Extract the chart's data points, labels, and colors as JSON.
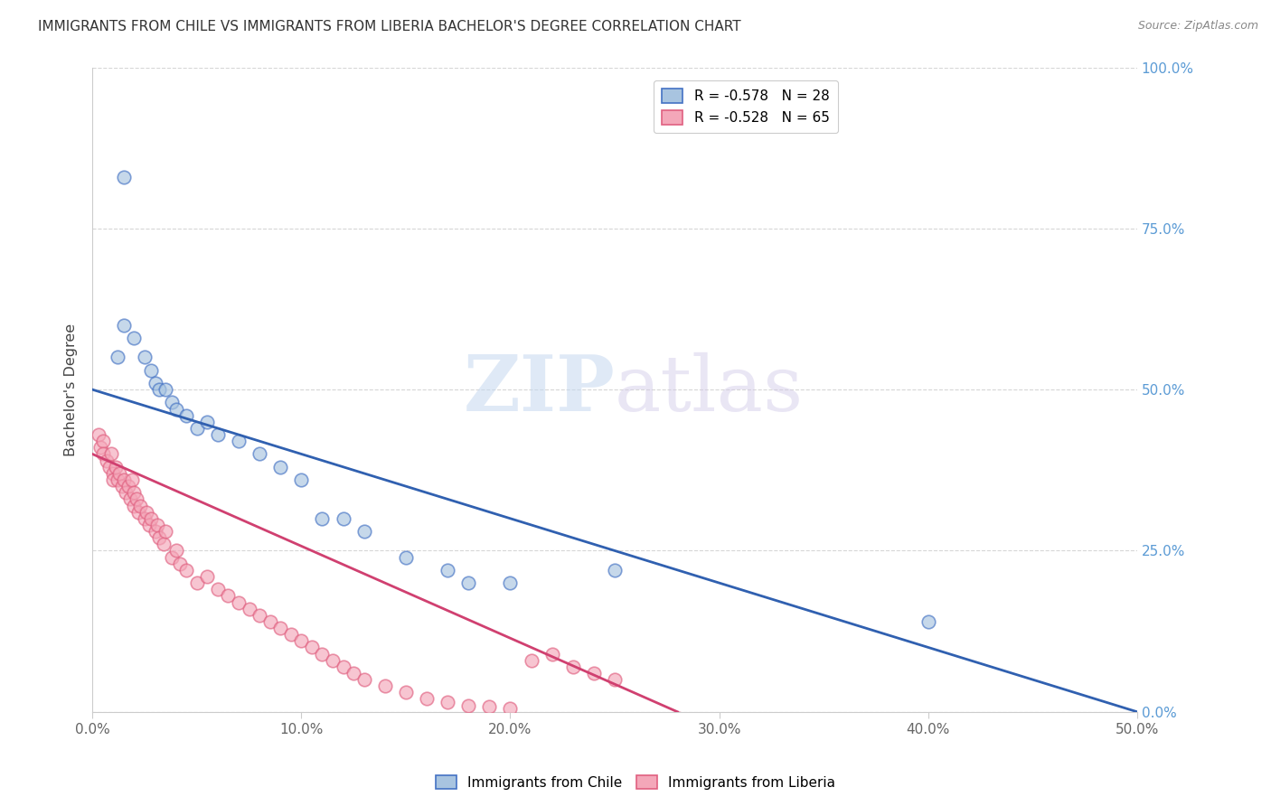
{
  "title": "IMMIGRANTS FROM CHILE VS IMMIGRANTS FROM LIBERIA BACHELOR'S DEGREE CORRELATION CHART",
  "source": "Source: ZipAtlas.com",
  "xlabel_vals": [
    0.0,
    10.0,
    20.0,
    30.0,
    40.0,
    50.0
  ],
  "ylabel_vals": [
    0.0,
    25.0,
    50.0,
    75.0,
    100.0
  ],
  "chile_color": "#a8c4e0",
  "chile_edge_color": "#4472c4",
  "liberia_color": "#f4a7b9",
  "liberia_edge_color": "#e06080",
  "chile_line_color": "#3060b0",
  "liberia_line_color": "#d04070",
  "chile_R": -0.578,
  "chile_N": 28,
  "liberia_R": -0.528,
  "liberia_N": 65,
  "watermark_zip": "ZIP",
  "watermark_atlas": "atlas",
  "chile_x": [
    1.5,
    1.5,
    2.0,
    2.5,
    2.8,
    3.0,
    3.2,
    3.5,
    3.8,
    4.0,
    4.5,
    5.0,
    5.5,
    6.0,
    7.0,
    8.0,
    9.0,
    10.0,
    11.0,
    12.0,
    13.0,
    15.0,
    17.0,
    18.0,
    20.0,
    25.0,
    40.0,
    1.2
  ],
  "chile_y": [
    83.0,
    60.0,
    58.0,
    55.0,
    53.0,
    51.0,
    50.0,
    50.0,
    48.0,
    47.0,
    46.0,
    44.0,
    45.0,
    43.0,
    42.0,
    40.0,
    38.0,
    36.0,
    30.0,
    30.0,
    28.0,
    24.0,
    22.0,
    20.0,
    20.0,
    22.0,
    14.0,
    55.0
  ],
  "liberia_x": [
    0.3,
    0.4,
    0.5,
    0.5,
    0.7,
    0.8,
    0.9,
    1.0,
    1.0,
    1.1,
    1.2,
    1.3,
    1.4,
    1.5,
    1.6,
    1.7,
    1.8,
    1.9,
    2.0,
    2.0,
    2.1,
    2.2,
    2.3,
    2.5,
    2.6,
    2.7,
    2.8,
    3.0,
    3.1,
    3.2,
    3.4,
    3.5,
    3.8,
    4.0,
    4.2,
    4.5,
    5.0,
    5.5,
    6.0,
    6.5,
    7.0,
    7.5,
    8.0,
    8.5,
    9.0,
    9.5,
    10.0,
    10.5,
    11.0,
    11.5,
    12.0,
    12.5,
    13.0,
    14.0,
    15.0,
    16.0,
    17.0,
    18.0,
    19.0,
    20.0,
    21.0,
    22.0,
    23.0,
    24.0,
    25.0
  ],
  "liberia_y": [
    43.0,
    41.0,
    42.0,
    40.0,
    39.0,
    38.0,
    40.0,
    37.0,
    36.0,
    38.0,
    36.0,
    37.0,
    35.0,
    36.0,
    34.0,
    35.0,
    33.0,
    36.0,
    34.0,
    32.0,
    33.0,
    31.0,
    32.0,
    30.0,
    31.0,
    29.0,
    30.0,
    28.0,
    29.0,
    27.0,
    26.0,
    28.0,
    24.0,
    25.0,
    23.0,
    22.0,
    20.0,
    21.0,
    19.0,
    18.0,
    17.0,
    16.0,
    15.0,
    14.0,
    13.0,
    12.0,
    11.0,
    10.0,
    9.0,
    8.0,
    7.0,
    6.0,
    5.0,
    4.0,
    3.0,
    2.0,
    1.5,
    1.0,
    0.8,
    0.5,
    8.0,
    9.0,
    7.0,
    6.0,
    5.0
  ],
  "figsize": [
    14.06,
    8.92
  ],
  "dpi": 100
}
